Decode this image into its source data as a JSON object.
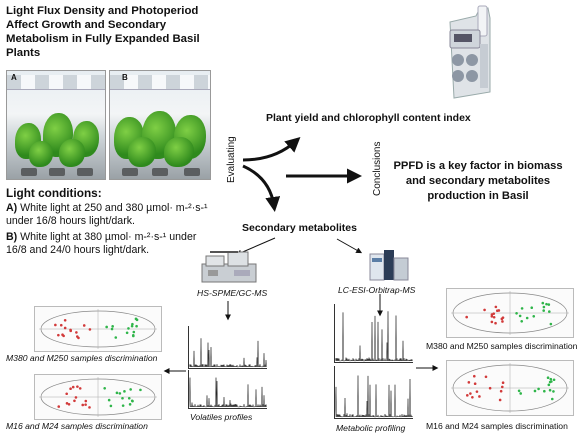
{
  "title": "Light Flux Density and Photoperiod Affect Growth and Secondary Metabolism in Fully Expanded Basil Plants",
  "photos": [
    {
      "label": "A"
    },
    {
      "label": "B"
    }
  ],
  "evaluating_label": "Evaluating",
  "conclusions_label": "Conclusions",
  "plant_yield_label": "Plant yield and chlorophyll content index",
  "conclusion_text": "PPFD is a key factor in biomass and secondary metabolites production in Basil",
  "light_conditions": {
    "title": "Light conditions:",
    "a_prefix": "A)",
    "a_text": " White light at 250 and 380 µmol· m-²·s-¹ under 16/8 hours light/dark.",
    "b_prefix": "B)",
    "b_text": " White light at 380 µmol· m-²·s-¹ under 16/8 and 24/0 hours light/dark."
  },
  "secondary_metabolites_label": "Secondary metabolites",
  "methods": {
    "left": "HS-SPME/GC-MS",
    "right": "LC-ESI-Orbitrap-MS"
  },
  "captions": {
    "left_top": "M380 and M250 samples discrimination",
    "left_bottom": "M16 and M24 samples discrimination",
    "volatiles": "Volatiles profiles",
    "metabolic": "Metabolic profiling",
    "right_top": "M380 and M250 samples discrimination",
    "right_bottom": "M16 and M24 samples discrimination"
  },
  "colors": {
    "series_red": "#d23a3a",
    "series_green": "#2fb54a",
    "arrow": "#111111",
    "device_body": "#e9ecef",
    "device_buttons": "#8d97a4"
  },
  "icons": [
    "chlorophyll-meter-icon",
    "gc-ms-instrument-icon",
    "lc-ms-instrument-icon"
  ]
}
